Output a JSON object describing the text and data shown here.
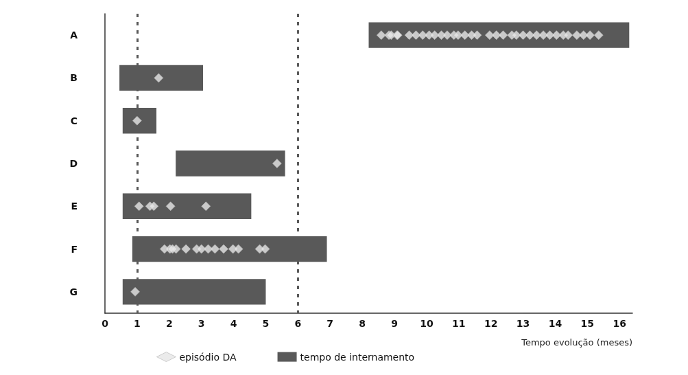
{
  "chart_data": {
    "type": "bar",
    "orientation": "horizontal",
    "xlabel": "Tempo evolução (meses)",
    "categories": [
      "A",
      "B",
      "C",
      "D",
      "E",
      "F",
      "G"
    ],
    "series": [
      {
        "name": "tempo de internamento",
        "color": "#595959",
        "base": [
          8.2,
          0.45,
          0.55,
          2.2,
          0.55,
          0.85,
          0.55
        ],
        "values": [
          8.1,
          2.6,
          1.05,
          3.4,
          4.0,
          6.05,
          4.45
        ]
      },
      {
        "type": "scatter",
        "name": "episódio DA",
        "color": "#e6e6e6",
        "marker": "diamond",
        "x": [
          "A",
          "A",
          "A",
          "A",
          "A",
          "A",
          "A",
          "A",
          "A",
          "A",
          "A",
          "A",
          "A",
          "A",
          "A",
          "A",
          "A",
          "A",
          "A",
          "A",
          "A",
          "A",
          "A",
          "A",
          "A",
          "A",
          "A",
          "A",
          "A",
          "A",
          "A",
          "A",
          "A",
          "A",
          "B",
          "C",
          "D",
          "E",
          "E",
          "E",
          "E",
          "E",
          "F",
          "F",
          "F",
          "F",
          "F",
          "F",
          "F",
          "F",
          "F",
          "F",
          "F",
          "F",
          "F",
          "F",
          "G"
        ],
        "values": [
          8.59,
          8.83,
          9.08,
          8.9,
          9.1,
          9.46,
          9.67,
          9.88,
          10.08,
          10.25,
          10.46,
          10.64,
          10.85,
          10.98,
          11.19,
          11.4,
          11.57,
          11.96,
          12.17,
          12.38,
          12.65,
          12.79,
          13.0,
          13.21,
          13.42,
          13.63,
          13.83,
          14.04,
          14.25,
          14.4,
          14.67,
          14.88,
          15.08,
          15.35,
          1.67,
          1.0,
          5.35,
          1.06,
          1.4,
          1.52,
          2.04,
          3.14,
          1.85,
          2.02,
          2.21,
          2.1,
          2.52,
          2.85,
          3.0,
          3.21,
          3.42,
          3.69,
          3.98,
          4.15,
          4.81,
          4.98,
          0.94
        ]
      }
    ],
    "xlim": [
      0,
      16.4
    ],
    "xticks": [
      0,
      1,
      2,
      3,
      4,
      5,
      6,
      7,
      8,
      9,
      10,
      11,
      12,
      13,
      14,
      15,
      16
    ],
    "ref_lines": [
      {
        "axis": "x",
        "value": 1,
        "color": "#595959",
        "line_style": "dashed"
      },
      {
        "axis": "x",
        "value": 6,
        "color": "#595959",
        "line_style": "dashed"
      }
    ],
    "grid": false,
    "legend": "bottom"
  }
}
